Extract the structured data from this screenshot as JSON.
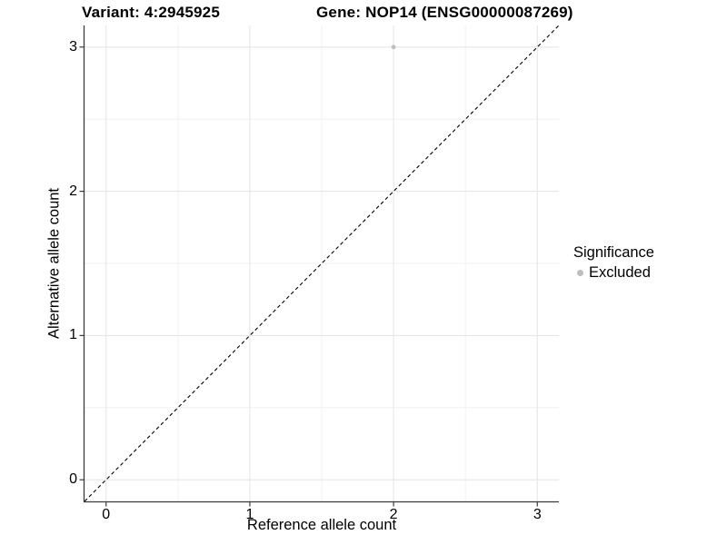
{
  "colors": {
    "background": "#ffffff",
    "grid_major": "#e6e6e6",
    "grid_minor": "#f1f1f1",
    "axis_line": "#3b3b3b",
    "tick_mark": "#3b3b3b",
    "text": "#000000",
    "excluded_point": "#bebebe",
    "reference_line": "#000000"
  },
  "chart_data": {
    "type": "scatter",
    "titles": [
      "Variant: 4:2945925",
      "Gene: NOP14 (ENSG00000087269)"
    ],
    "xlabel": "Reference allele count",
    "ylabel": "Alternative allele count",
    "xlim": [
      -0.15,
      3.15
    ],
    "ylim": [
      -0.15,
      3.15
    ],
    "x_ticks": [
      0,
      1,
      2,
      3
    ],
    "y_ticks": [
      0,
      1,
      2,
      3
    ],
    "x_minor_ticks": [
      0.5,
      1.5,
      2.5
    ],
    "y_minor_ticks": [
      0.5,
      1.5,
      2.5
    ],
    "grid": true,
    "legend": {
      "title": "Significance",
      "position": "right",
      "items": [
        {
          "label": "Excluded",
          "color": "#bebebe"
        }
      ]
    },
    "series": [
      {
        "name": "Excluded",
        "color": "#bebebe",
        "point_radius": 2.4,
        "points": [
          [
            2,
            3
          ]
        ]
      }
    ],
    "reference_line": {
      "type": "identity",
      "line_style": "dashed",
      "color": "#000000",
      "dash": "4 3"
    }
  }
}
